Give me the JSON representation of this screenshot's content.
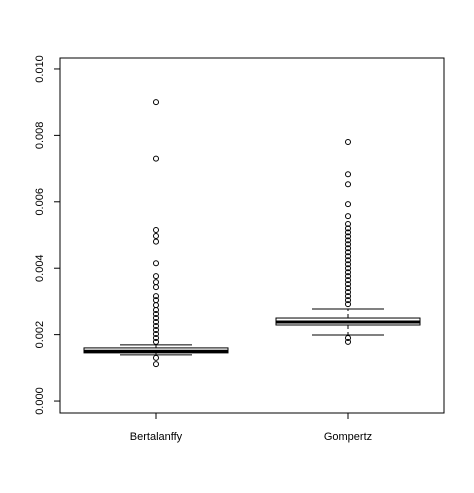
{
  "chart_data": {
    "type": "box",
    "categories": [
      "Bertalanffy",
      "Gompertz"
    ],
    "boxes": [
      {
        "whisker_low": 0.00139,
        "q1": 0.00145,
        "median": 0.0015,
        "q3": 0.0016,
        "whisker_high": 0.00169,
        "outliers": [
          0.009,
          0.0073,
          0.00515,
          0.00497,
          0.0048,
          0.00415,
          0.00376,
          0.00358,
          0.00343,
          0.00316,
          0.00304,
          0.00289,
          0.00274,
          0.00262,
          0.0025,
          0.00238,
          0.00226,
          0.00214,
          0.00202,
          0.0019,
          0.00178,
          0.0013,
          0.00111
        ]
      },
      {
        "whisker_low": 0.00199,
        "q1": 0.00229,
        "median": 0.00238,
        "q3": 0.0025,
        "whisker_high": 0.00277,
        "outliers": [
          0.0078,
          0.00683,
          0.00653,
          0.00593,
          0.00557,
          0.00533,
          0.0052,
          0.00508,
          0.00496,
          0.00484,
          0.00472,
          0.0046,
          0.00448,
          0.00436,
          0.00424,
          0.00412,
          0.004,
          0.00388,
          0.00376,
          0.00364,
          0.00352,
          0.0034,
          0.00328,
          0.00316,
          0.00304,
          0.00292,
          0.0019,
          0.00178
        ]
      }
    ],
    "color": "#000000",
    "ylim": [
      -0.00036,
      0.01033
    ],
    "yticks": [
      {
        "value": 0,
        "label": "0.000"
      },
      {
        "value": 0.002,
        "label": "0.002"
      },
      {
        "value": 0.004,
        "label": "0.004"
      },
      {
        "value": 0.006,
        "label": "0.006"
      },
      {
        "value": 0.008,
        "label": "0.008"
      },
      {
        "value": 0.01,
        "label": "0.010"
      }
    ]
  }
}
